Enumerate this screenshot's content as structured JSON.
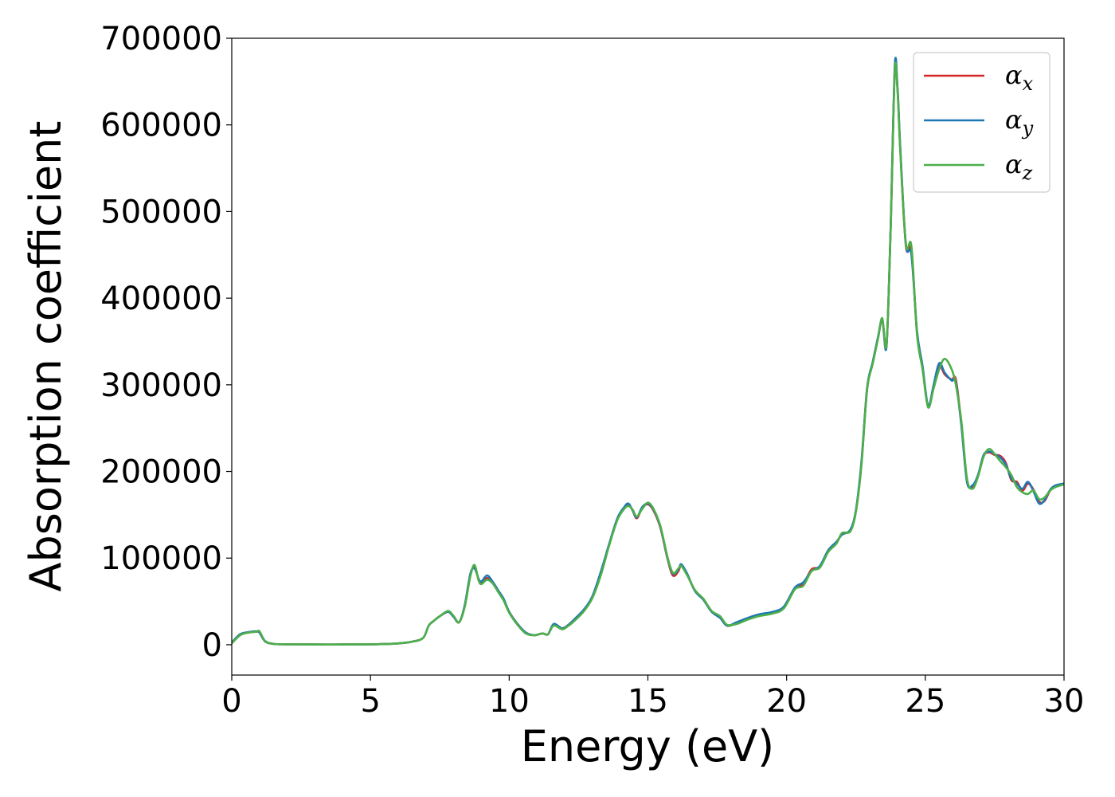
{
  "chart_data": {
    "type": "line",
    "xlabel": "Energy (eV)",
    "ylabel": "Absorption coefficient",
    "xlim": [
      0,
      30
    ],
    "ylim": [
      -35000,
      700000
    ],
    "xticks": [
      0,
      5,
      10,
      15,
      20,
      25,
      30
    ],
    "yticks": [
      0,
      100000,
      200000,
      300000,
      400000,
      500000,
      600000,
      700000
    ],
    "grid": false,
    "legend_position": "top-right",
    "series": [
      {
        "name": "αx",
        "base": "α",
        "sub": "x",
        "color": "#d62728",
        "x": [
          0,
          0.3,
          0.6,
          0.9,
          1.0,
          1.2,
          1.5,
          2,
          3,
          4,
          5,
          5.5,
          6,
          6.5,
          6.9,
          7.1,
          7.3,
          7.5,
          7.8,
          8.0,
          8.2,
          8.4,
          8.6,
          8.75,
          8.9,
          9.0,
          9.2,
          9.4,
          9.6,
          9.8,
          10.0,
          10.3,
          10.6,
          10.9,
          11.2,
          11.4,
          11.6,
          11.9,
          12.1,
          12.4,
          12.7,
          13.0,
          13.3,
          13.6,
          13.9,
          14.15,
          14.3,
          14.45,
          14.6,
          14.8,
          15.0,
          15.2,
          15.45,
          15.7,
          15.9,
          16.1,
          16.2,
          16.4,
          16.7,
          17.0,
          17.3,
          17.6,
          17.85,
          18.2,
          18.6,
          19.0,
          19.5,
          19.9,
          20.3,
          20.6,
          20.9,
          21.2,
          21.5,
          21.8,
          22.0,
          22.3,
          22.5,
          22.7,
          22.9,
          23.1,
          23.3,
          23.45,
          23.6,
          23.75,
          23.9,
          24.0,
          24.1,
          24.3,
          24.5,
          24.7,
          24.9,
          25.1,
          25.3,
          25.5,
          25.7,
          25.95,
          26.1,
          26.3,
          26.5,
          26.7,
          26.9,
          27.1,
          27.3,
          27.5,
          27.7,
          27.9,
          28.1,
          28.3,
          28.5,
          28.7,
          28.9,
          29.1,
          29.3,
          29.5,
          29.7,
          30
        ],
        "y": [
          2000,
          12000,
          14000,
          15000,
          14000,
          4000,
          1000,
          500,
          300,
          300,
          400,
          800,
          1500,
          3500,
          8000,
          22000,
          28000,
          33000,
          38000,
          32000,
          26000,
          45000,
          80000,
          90000,
          75000,
          71000,
          77000,
          72000,
          62000,
          52000,
          38000,
          24000,
          14000,
          11000,
          13000,
          12000,
          23000,
          19000,
          22000,
          30000,
          40000,
          55000,
          82000,
          115000,
          145000,
          158000,
          162000,
          155000,
          146000,
          158000,
          162000,
          155000,
          135000,
          100000,
          80000,
          85000,
          92000,
          82000,
          62000,
          52000,
          38000,
          32000,
          22000,
          25000,
          30000,
          34000,
          37000,
          43000,
          65000,
          70000,
          87000,
          90000,
          108000,
          118000,
          128000,
          132000,
          155000,
          210000,
          295000,
          325000,
          355000,
          375000,
          345000,
          480000,
          665000,
          640000,
          570000,
          460000,
          455000,
          360000,
          320000,
          275000,
          298000,
          322000,
          312000,
          306000,
          306000,
          255000,
          190000,
          182000,
          195000,
          218000,
          222000,
          219000,
          218000,
          210000,
          190000,
          188000,
          178000,
          186000,
          179000,
          165000,
          166000,
          178000,
          183000,
          186000
        ]
      },
      {
        "name": "αy",
        "base": "α",
        "sub": "y",
        "color": "#1f77b4",
        "x": [
          0,
          0.3,
          0.6,
          0.9,
          1.0,
          1.2,
          1.5,
          2,
          3,
          4,
          5,
          5.5,
          6,
          6.5,
          6.9,
          7.1,
          7.3,
          7.5,
          7.8,
          8.0,
          8.2,
          8.4,
          8.6,
          8.75,
          8.9,
          9.0,
          9.2,
          9.4,
          9.6,
          9.8,
          10.0,
          10.3,
          10.6,
          10.9,
          11.2,
          11.4,
          11.6,
          11.9,
          12.1,
          12.4,
          12.7,
          13.0,
          13.3,
          13.6,
          13.9,
          14.15,
          14.3,
          14.45,
          14.6,
          14.8,
          15.0,
          15.2,
          15.45,
          15.7,
          15.9,
          16.1,
          16.2,
          16.4,
          16.7,
          17.0,
          17.3,
          17.6,
          17.85,
          18.2,
          18.6,
          19.0,
          19.5,
          19.9,
          20.3,
          20.6,
          20.9,
          21.2,
          21.5,
          21.8,
          22.0,
          22.3,
          22.5,
          22.7,
          22.9,
          23.1,
          23.3,
          23.45,
          23.6,
          23.75,
          23.9,
          24.0,
          24.1,
          24.3,
          24.5,
          24.7,
          24.9,
          25.1,
          25.3,
          25.5,
          25.7,
          25.95,
          26.1,
          26.3,
          26.5,
          26.7,
          26.9,
          27.1,
          27.3,
          27.5,
          27.7,
          27.9,
          28.1,
          28.3,
          28.5,
          28.7,
          28.9,
          29.1,
          29.3,
          29.5,
          29.7,
          30
        ],
        "y": [
          2500,
          12000,
          14500,
          15500,
          14000,
          4000,
          1000,
          500,
          300,
          300,
          400,
          800,
          1500,
          3500,
          8000,
          22000,
          28000,
          33000,
          38000,
          32000,
          26000,
          46000,
          82000,
          88000,
          76000,
          73000,
          80000,
          73000,
          63000,
          53000,
          38000,
          24000,
          14000,
          11000,
          13000,
          12000,
          24000,
          19000,
          22000,
          31000,
          41000,
          56000,
          84000,
          116000,
          146000,
          159000,
          163000,
          155000,
          147000,
          159000,
          163000,
          156000,
          136000,
          101000,
          82000,
          87000,
          93000,
          83000,
          62000,
          52000,
          38000,
          31000,
          22000,
          26000,
          31000,
          35000,
          38000,
          44000,
          66000,
          72000,
          85000,
          91000,
          109000,
          119000,
          127000,
          133000,
          156000,
          212000,
          296000,
          326000,
          356000,
          376000,
          344000,
          482000,
          668000,
          642000,
          572000,
          462000,
          450000,
          362000,
          322000,
          276000,
          300000,
          325000,
          314000,
          305000,
          303000,
          253000,
          188000,
          184000,
          196000,
          219000,
          223000,
          220000,
          216000,
          208000,
          192000,
          186000,
          180000,
          188000,
          177000,
          163000,
          167000,
          179000,
          184000,
          186000
        ]
      },
      {
        "name": "αz",
        "base": "α",
        "sub": "z",
        "color": "#4daf4a",
        "x": [
          0,
          0.3,
          0.6,
          0.9,
          1.0,
          1.2,
          1.5,
          2,
          3,
          4,
          5,
          5.5,
          6,
          6.5,
          6.9,
          7.1,
          7.3,
          7.5,
          7.8,
          8.0,
          8.2,
          8.4,
          8.6,
          8.75,
          8.9,
          9.0,
          9.2,
          9.4,
          9.6,
          9.8,
          10.0,
          10.3,
          10.6,
          10.9,
          11.2,
          11.4,
          11.6,
          11.9,
          12.1,
          12.4,
          12.7,
          13.0,
          13.3,
          13.6,
          13.9,
          14.15,
          14.3,
          14.45,
          14.6,
          14.8,
          15.0,
          15.2,
          15.45,
          15.7,
          15.9,
          16.1,
          16.2,
          16.4,
          16.7,
          17.0,
          17.3,
          17.6,
          17.85,
          18.2,
          18.6,
          19.0,
          19.5,
          19.9,
          20.3,
          20.6,
          20.9,
          21.2,
          21.5,
          21.8,
          22.0,
          22.3,
          22.5,
          22.7,
          22.9,
          23.1,
          23.3,
          23.45,
          23.6,
          23.75,
          23.9,
          24.0,
          24.1,
          24.3,
          24.5,
          24.7,
          24.9,
          25.1,
          25.3,
          25.5,
          25.7,
          25.95,
          26.1,
          26.3,
          26.5,
          26.7,
          26.9,
          27.1,
          27.3,
          27.5,
          27.7,
          27.9,
          28.1,
          28.3,
          28.5,
          28.7,
          28.9,
          29.1,
          29.3,
          29.5,
          29.7,
          30
        ],
        "y": [
          1500,
          11000,
          14000,
          15000,
          15500,
          4500,
          1000,
          500,
          300,
          300,
          400,
          800,
          1500,
          3500,
          8000,
          22000,
          28000,
          33000,
          39000,
          33000,
          26000,
          44000,
          79000,
          92000,
          74000,
          70000,
          75000,
          71000,
          61000,
          51000,
          37000,
          23000,
          13000,
          11000,
          13000,
          12000,
          22000,
          18000,
          21000,
          29000,
          39000,
          54000,
          80000,
          114000,
          144000,
          157000,
          160000,
          156000,
          148000,
          157000,
          164000,
          157000,
          137000,
          102000,
          83000,
          88000,
          91000,
          81000,
          63000,
          53000,
          39000,
          33000,
          23000,
          24000,
          29000,
          33000,
          36000,
          42000,
          64000,
          68000,
          85000,
          89000,
          107000,
          117000,
          129000,
          131000,
          154000,
          208000,
          294000,
          324000,
          354000,
          377000,
          346000,
          478000,
          662000,
          638000,
          568000,
          462000,
          460000,
          358000,
          318000,
          274000,
          296000,
          318000,
          330000,
          318000,
          300000,
          258000,
          192000,
          180000,
          194000,
          217000,
          226000,
          220000,
          212000,
          205000,
          196000,
          182000,
          176000,
          174000,
          178000,
          168000,
          170000,
          178000,
          182000,
          185000
        ]
      }
    ]
  }
}
